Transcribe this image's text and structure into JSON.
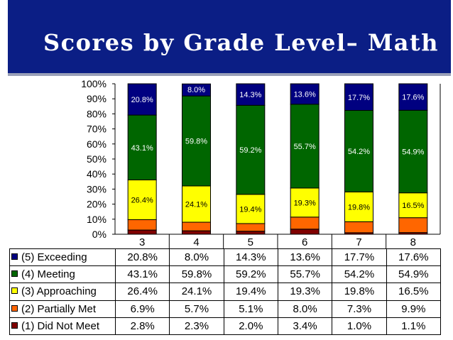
{
  "title": "Scores by Grade Level– Math",
  "chart_data": {
    "type": "bar",
    "stacked": true,
    "title": "Scores by Grade Level– Math",
    "categories": [
      "3",
      "4",
      "5",
      "6",
      "7",
      "8"
    ],
    "y_ticks": [
      "0%",
      "10%",
      "20%",
      "30%",
      "40%",
      "50%",
      "60%",
      "70%",
      "80%",
      "90%",
      "100%"
    ],
    "ylim": [
      0,
      100
    ],
    "series": [
      {
        "name": "(1) Did Not Meet",
        "color": "#800000",
        "values": [
          2.8,
          2.3,
          2.0,
          3.4,
          1.0,
          1.1
        ],
        "labels": [
          "2.8%",
          "2.3%",
          "2.0%",
          "3.4%",
          "1.0%",
          "1.1%"
        ]
      },
      {
        "name": "(2) Partially Met",
        "color": "#ff6600",
        "values": [
          6.9,
          5.7,
          5.1,
          8.0,
          7.3,
          9.9
        ],
        "labels": [
          "6.9%",
          "5.7%",
          "5.1%",
          "8.0%",
          "7.3%",
          "9.9%"
        ]
      },
      {
        "name": "(3) Approaching",
        "color": "#ffff00",
        "values": [
          26.4,
          24.1,
          19.4,
          19.3,
          19.8,
          16.5
        ],
        "labels": [
          "26.4%",
          "24.1%",
          "19.4%",
          "19.3%",
          "19.8%",
          "16.5%"
        ]
      },
      {
        "name": "(4) Meeting",
        "color": "#006600",
        "values": [
          43.1,
          59.8,
          59.2,
          55.7,
          54.2,
          54.9
        ],
        "labels": [
          "43.1%",
          "59.8%",
          "59.2%",
          "55.7%",
          "54.2%",
          "54.9%"
        ]
      },
      {
        "name": "(5) Exceeding",
        "color": "#000080",
        "values": [
          20.8,
          8.0,
          14.3,
          13.6,
          17.7,
          17.6
        ],
        "labels": [
          "20.8%",
          "8.0%",
          "14.3%",
          "13.6%",
          "17.7%",
          "17.6%"
        ]
      }
    ],
    "bar_labels_for_series": [
      "(3) Approaching",
      "(4) Meeting",
      "(5) Exceeding"
    ],
    "table_row_order": [
      "(5) Exceeding",
      "(4) Meeting",
      "(3) Approaching",
      "(2) Partially Met",
      "(1) Did Not Meet"
    ]
  }
}
